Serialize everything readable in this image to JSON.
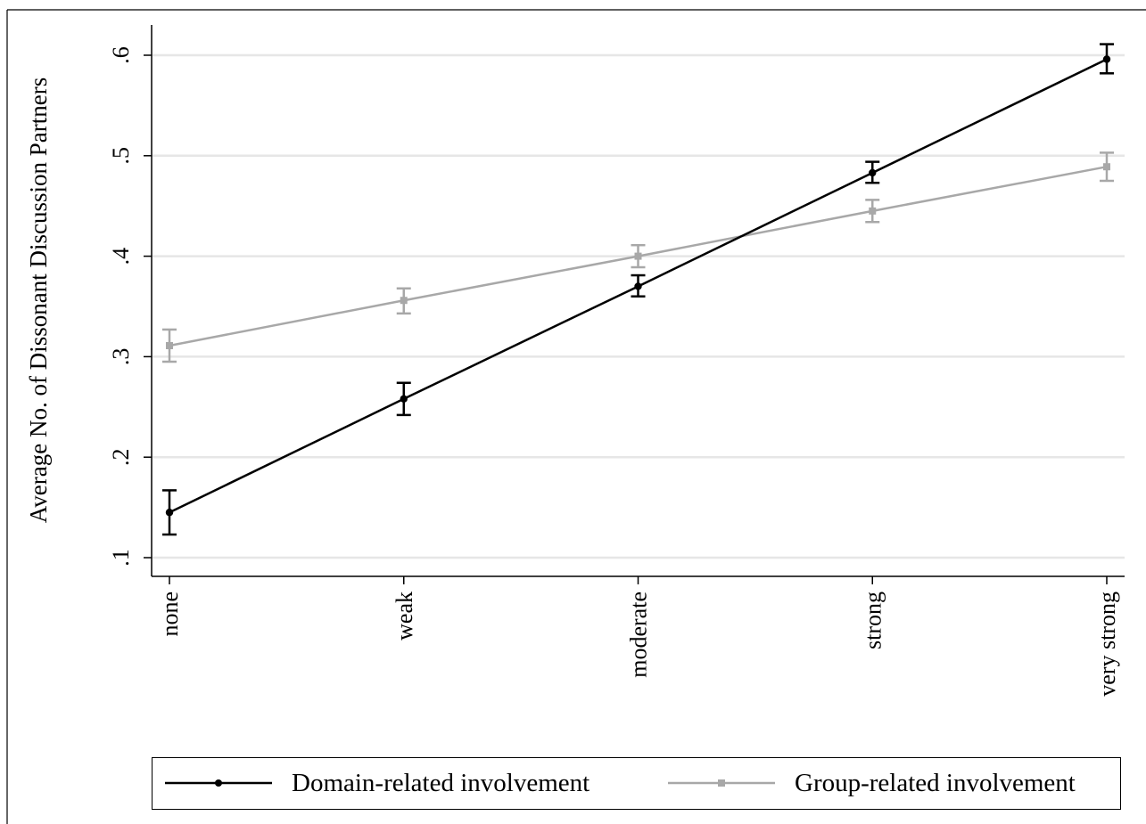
{
  "chart_data": {
    "type": "line",
    "title": "",
    "xlabel": "",
    "ylabel": "Average No. of Dissonant Discussion Partners",
    "categories": [
      "none",
      "weak",
      "moderate",
      "strong",
      "very strong"
    ],
    "ylim": [
      0.1,
      0.6
    ],
    "yticks": [
      0.1,
      0.2,
      0.3,
      0.4,
      0.5,
      0.6
    ],
    "ytick_labels": [
      ".1",
      ".2",
      ".3",
      ".4",
      ".5",
      ".6"
    ],
    "grid": "horizontal",
    "legend_position": "bottom",
    "series": [
      {
        "name": "Domain-related involvement",
        "color": "#000000",
        "marker": "circle",
        "values": [
          0.145,
          0.258,
          0.37,
          0.483,
          0.596
        ],
        "ci_low": [
          0.123,
          0.242,
          0.36,
          0.473,
          0.582
        ],
        "ci_high": [
          0.167,
          0.274,
          0.381,
          0.494,
          0.611
        ]
      },
      {
        "name": "Group-related involvement",
        "color": "#a8a8a8",
        "marker": "square",
        "values": [
          0.311,
          0.356,
          0.4,
          0.445,
          0.489
        ],
        "ci_low": [
          0.295,
          0.343,
          0.389,
          0.434,
          0.475
        ],
        "ci_high": [
          0.327,
          0.368,
          0.411,
          0.456,
          0.503
        ]
      }
    ]
  }
}
